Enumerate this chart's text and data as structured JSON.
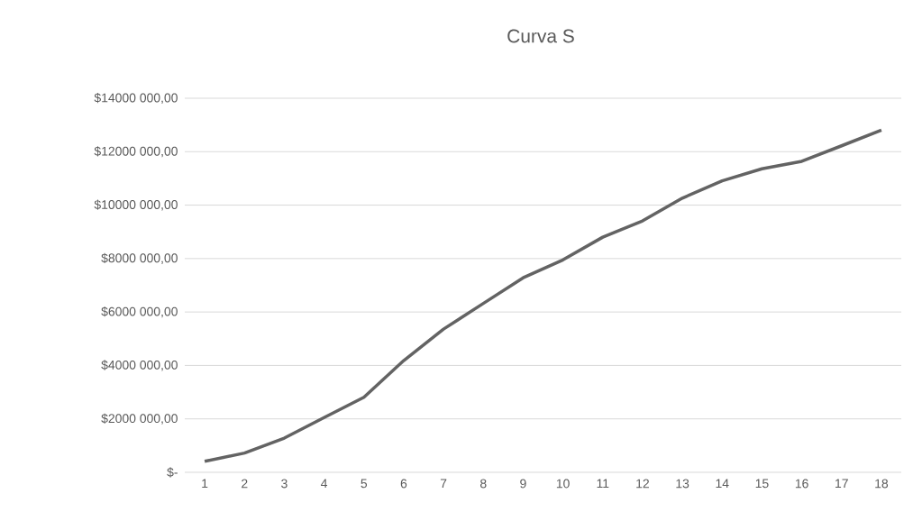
{
  "chart_data": {
    "type": "line",
    "title": "Curva S",
    "categories": [
      "1",
      "2",
      "3",
      "4",
      "5",
      "6",
      "7",
      "8",
      "9",
      "10",
      "11",
      "12",
      "13",
      "14",
      "15",
      "16",
      "17",
      "18"
    ],
    "values": [
      410000,
      720000,
      1280000,
      2050000,
      2810000,
      4180000,
      5360000,
      6320000,
      7280000,
      7950000,
      8800000,
      9410000,
      10260000,
      10910000,
      11360000,
      11640000,
      12220000,
      12810000
    ],
    "color": "#636363",
    "ylim": [
      0,
      14000000
    ],
    "yticks": [
      {
        "value": 0,
        "label": "$-"
      },
      {
        "value": 2000000,
        "label": "$2000 000,00"
      },
      {
        "value": 4000000,
        "label": "$4000 000,00"
      },
      {
        "value": 6000000,
        "label": "$6000 000,00"
      },
      {
        "value": 8000000,
        "label": "$8000 000,00"
      },
      {
        "value": 10000000,
        "label": "$10000 000,00"
      },
      {
        "value": 12000000,
        "label": "$12000 000,00"
      },
      {
        "value": 14000000,
        "label": "$14000 000,00"
      }
    ],
    "grid": "y",
    "marker": "none",
    "line_style": "solid"
  }
}
